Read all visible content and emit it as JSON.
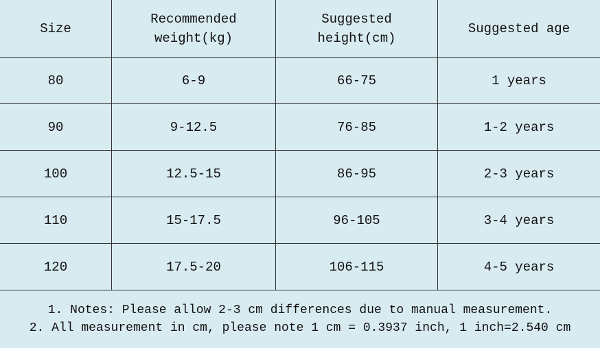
{
  "table": {
    "header": [
      [
        "Size"
      ],
      [
        "Recommended",
        "weight(kg)"
      ],
      [
        "Suggested",
        "height(cm)"
      ],
      [
        "Suggested age"
      ]
    ],
    "rows": [
      [
        "80",
        "6-9",
        "66-75",
        "1 years"
      ],
      [
        "90",
        "9-12.5",
        "76-85",
        "1-2 years"
      ],
      [
        "100",
        "12.5-15",
        "86-95",
        "2-3 years"
      ],
      [
        "110",
        "15-17.5",
        "96-105",
        "3-4 years"
      ],
      [
        "120",
        "17.5-20",
        "106-115",
        "4-5 years"
      ]
    ]
  },
  "notes": [
    "1. Notes: Please allow 2-3 cm differences due to manual measurement.",
    "2. All measurement in cm, please note 1 cm = 0.3937 inch, 1 inch=2.540 cm"
  ]
}
